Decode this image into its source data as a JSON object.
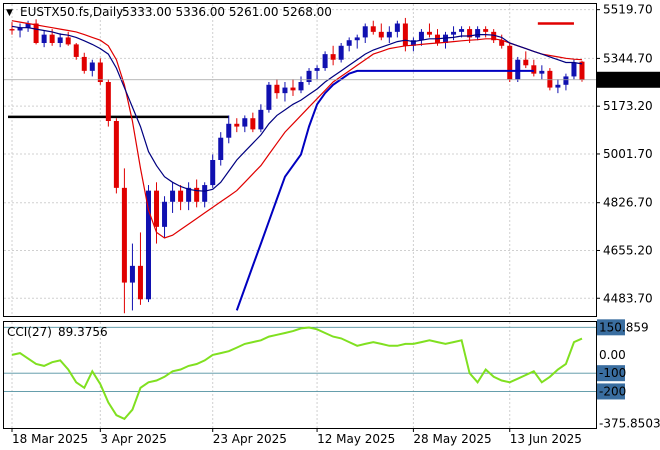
{
  "header": {
    "symbol_label": "EUSTX50.fs,Daily",
    "ohlc_label": "5333.00 5336.00 5261.00 5268.00"
  },
  "colors": {
    "bull": "#1010b0",
    "bear": "#e00000",
    "ma_fast": "#000080",
    "ma_slow": "#e00000",
    "trend": "#0000c0",
    "cci": "#80e020",
    "grid": "#d0d0d0",
    "current_price_box": "#000000"
  },
  "chart_data": [
    {
      "type": "candlestick",
      "title": "EUSTX50.fs,Daily",
      "last_ohlc": {
        "open": 5333.0,
        "high": 5336.0,
        "low": 5261.0,
        "close": 5268.0
      },
      "current_price_label": "5268.00",
      "ylim": [
        4420,
        5540
      ],
      "yticks": [
        5519.7,
        5344.7,
        5173.2,
        5001.7,
        4826.7,
        4655.2,
        4483.7
      ],
      "ytick_labels": [
        "5519.70",
        "5344.70",
        "5173.20",
        "5001.70",
        "4826.70",
        "4655.20",
        "4483.70"
      ],
      "x_labels": [
        {
          "index": 0,
          "label": "18 Mar 2025"
        },
        {
          "index": 11,
          "label": "3 Apr 2025"
        },
        {
          "index": 25,
          "label": "23 Apr 2025"
        },
        {
          "index": 38,
          "label": "12 May 2025"
        },
        {
          "index": 50,
          "label": "28 May 2025"
        },
        {
          "index": 62,
          "label": "13 Jun 2025"
        }
      ],
      "candles": [
        [
          5450,
          5475,
          5430,
          5445
        ],
        [
          5445,
          5470,
          5420,
          5455
        ],
        [
          5455,
          5480,
          5440,
          5470
        ],
        [
          5470,
          5485,
          5395,
          5400
        ],
        [
          5400,
          5445,
          5385,
          5430
        ],
        [
          5430,
          5450,
          5390,
          5400
        ],
        [
          5400,
          5435,
          5385,
          5420
        ],
        [
          5420,
          5440,
          5390,
          5395
        ],
        [
          5395,
          5400,
          5340,
          5350
        ],
        [
          5350,
          5365,
          5290,
          5300
        ],
        [
          5300,
          5340,
          5280,
          5330
        ],
        [
          5330,
          5345,
          5250,
          5260
        ],
        [
          5260,
          5270,
          5100,
          5120
        ],
        [
          5120,
          5130,
          4860,
          4880
        ],
        [
          4880,
          4950,
          4430,
          4540
        ],
        [
          4540,
          4680,
          4440,
          4600
        ],
        [
          4600,
          4720,
          4460,
          4480
        ],
        [
          4480,
          4890,
          4470,
          4870
        ],
        [
          4870,
          4900,
          4680,
          4740
        ],
        [
          4740,
          4850,
          4700,
          4830
        ],
        [
          4830,
          4900,
          4790,
          4870
        ],
        [
          4870,
          4890,
          4800,
          4830
        ],
        [
          4830,
          4900,
          4800,
          4880
        ],
        [
          4880,
          4910,
          4810,
          4830
        ],
        [
          4830,
          4900,
          4810,
          4890
        ],
        [
          4890,
          5000,
          4880,
          4980
        ],
        [
          4980,
          5080,
          4960,
          5060
        ],
        [
          5060,
          5140,
          5040,
          5110
        ],
        [
          5110,
          5130,
          5080,
          5100
        ],
        [
          5100,
          5140,
          5080,
          5130
        ],
        [
          5130,
          5150,
          5080,
          5090
        ],
        [
          5090,
          5180,
          5080,
          5160
        ],
        [
          5160,
          5260,
          5150,
          5250
        ],
        [
          5250,
          5270,
          5200,
          5220
        ],
        [
          5220,
          5260,
          5190,
          5240
        ],
        [
          5240,
          5270,
          5210,
          5230
        ],
        [
          5230,
          5280,
          5220,
          5260
        ],
        [
          5260,
          5310,
          5250,
          5300
        ],
        [
          5300,
          5320,
          5270,
          5310
        ],
        [
          5310,
          5370,
          5300,
          5360
        ],
        [
          5360,
          5390,
          5320,
          5340
        ],
        [
          5340,
          5400,
          5330,
          5390
        ],
        [
          5390,
          5420,
          5370,
          5410
        ],
        [
          5410,
          5430,
          5380,
          5420
        ],
        [
          5420,
          5470,
          5400,
          5460
        ],
        [
          5460,
          5480,
          5430,
          5440
        ],
        [
          5440,
          5470,
          5410,
          5420
        ],
        [
          5420,
          5460,
          5400,
          5440
        ],
        [
          5440,
          5480,
          5420,
          5470
        ],
        [
          5470,
          5490,
          5370,
          5390
        ],
        [
          5390,
          5420,
          5370,
          5410
        ],
        [
          5410,
          5450,
          5390,
          5440
        ],
        [
          5440,
          5470,
          5420,
          5430
        ],
        [
          5430,
          5450,
          5390,
          5400
        ],
        [
          5400,
          5440,
          5380,
          5430
        ],
        [
          5430,
          5460,
          5410,
          5440
        ],
        [
          5440,
          5460,
          5420,
          5450
        ],
        [
          5450,
          5460,
          5400,
          5420
        ],
        [
          5420,
          5460,
          5410,
          5450
        ],
        [
          5450,
          5460,
          5420,
          5440
        ],
        [
          5440,
          5450,
          5400,
          5410
        ],
        [
          5410,
          5430,
          5380,
          5390
        ],
        [
          5390,
          5400,
          5260,
          5270
        ],
        [
          5270,
          5350,
          5260,
          5340
        ],
        [
          5340,
          5370,
          5310,
          5320
        ],
        [
          5320,
          5340,
          5280,
          5290
        ],
        [
          5290,
          5320,
          5270,
          5300
        ],
        [
          5300,
          5310,
          5230,
          5240
        ],
        [
          5240,
          5270,
          5220,
          5250
        ],
        [
          5250,
          5290,
          5230,
          5280
        ],
        [
          5280,
          5340,
          5270,
          5330
        ],
        [
          5333,
          5336,
          5261,
          5268
        ]
      ],
      "moving_average_fast": [
        5460,
        5455,
        5455,
        5450,
        5445,
        5440,
        5432,
        5428,
        5420,
        5408,
        5395,
        5380,
        5360,
        5310,
        5240,
        5170,
        5100,
        5010,
        4960,
        4920,
        4900,
        4885,
        4875,
        4870,
        4868,
        4875,
        4900,
        4940,
        4980,
        5010,
        5040,
        5070,
        5110,
        5140,
        5160,
        5180,
        5195,
        5215,
        5235,
        5260,
        5280,
        5300,
        5320,
        5340,
        5360,
        5375,
        5385,
        5395,
        5405,
        5410,
        5405,
        5410,
        5415,
        5415,
        5418,
        5420,
        5425,
        5425,
        5430,
        5430,
        5428,
        5420,
        5400,
        5390,
        5380,
        5370,
        5360,
        5350,
        5340,
        5330,
        5330,
        5325
      ],
      "moving_average_slow": [
        5480,
        5475,
        5470,
        5465,
        5460,
        5455,
        5450,
        5445,
        5440,
        5430,
        5420,
        5410,
        5390,
        5340,
        5250,
        5120,
        4950,
        4800,
        4720,
        4700,
        4710,
        4730,
        4750,
        4770,
        4790,
        4810,
        4830,
        4850,
        4870,
        4900,
        4930,
        4960,
        5000,
        5040,
        5080,
        5110,
        5140,
        5170,
        5200,
        5230,
        5260,
        5280,
        5300,
        5320,
        5340,
        5360,
        5370,
        5380,
        5385,
        5390,
        5392,
        5395,
        5398,
        5400,
        5402,
        5405,
        5408,
        5410,
        5412,
        5415,
        5415,
        5410,
        5400,
        5390,
        5380,
        5370,
        5360,
        5355,
        5350,
        5345,
        5342,
        5340
      ],
      "trend_line": [
        null,
        null,
        null,
        null,
        null,
        null,
        null,
        null,
        null,
        null,
        null,
        null,
        null,
        null,
        null,
        null,
        null,
        null,
        null,
        null,
        null,
        null,
        null,
        null,
        null,
        null,
        null,
        null,
        4440,
        4520,
        4600,
        4680,
        4760,
        4840,
        4920,
        4960,
        5000,
        5100,
        5180,
        5220,
        5250,
        5270,
        5290,
        5300,
        5300,
        5300,
        5300,
        5300,
        5300,
        5300,
        5300,
        5300,
        5300,
        5300,
        5300,
        5300,
        5300,
        5300,
        5300,
        5300,
        5300,
        5300,
        5300,
        5300,
        5300,
        5300,
        null,
        null,
        null,
        null,
        null,
        null
      ],
      "horizontal_levels": [
        {
          "value": 5135,
          "from": 0,
          "to": 27,
          "color": "#000000"
        },
        {
          "value": 5470,
          "from": 66,
          "to": 70,
          "color": "#e00000"
        }
      ]
    },
    {
      "type": "line",
      "title": "CCI(27)",
      "indicator_label": "CCI(27)",
      "indicator_value": "89.3756",
      "ylim": [
        -400,
        180
      ],
      "yticks": [
        150.859,
        0.0,
        -100,
        -200,
        -375.8503
      ],
      "ytick_labels": [
        "150.859",
        "0.00",
        "-100",
        "-200",
        "-375.8503"
      ],
      "highlighted_levels": [
        150.859,
        -100,
        -200
      ],
      "values": [
        0,
        10,
        -20,
        -50,
        -60,
        -40,
        -30,
        -80,
        -150,
        -180,
        -90,
        -160,
        -260,
        -330,
        -350,
        -300,
        -180,
        -150,
        -140,
        -120,
        -90,
        -80,
        -60,
        -50,
        -30,
        0,
        10,
        20,
        40,
        60,
        70,
        80,
        100,
        110,
        120,
        130,
        145,
        150,
        140,
        120,
        100,
        90,
        70,
        50,
        60,
        70,
        60,
        50,
        50,
        60,
        60,
        70,
        80,
        70,
        60,
        70,
        80,
        -100,
        -150,
        -80,
        -120,
        -140,
        -150,
        -130,
        -110,
        -90,
        -150,
        -120,
        -80,
        -50,
        70,
        89.3756
      ]
    }
  ]
}
